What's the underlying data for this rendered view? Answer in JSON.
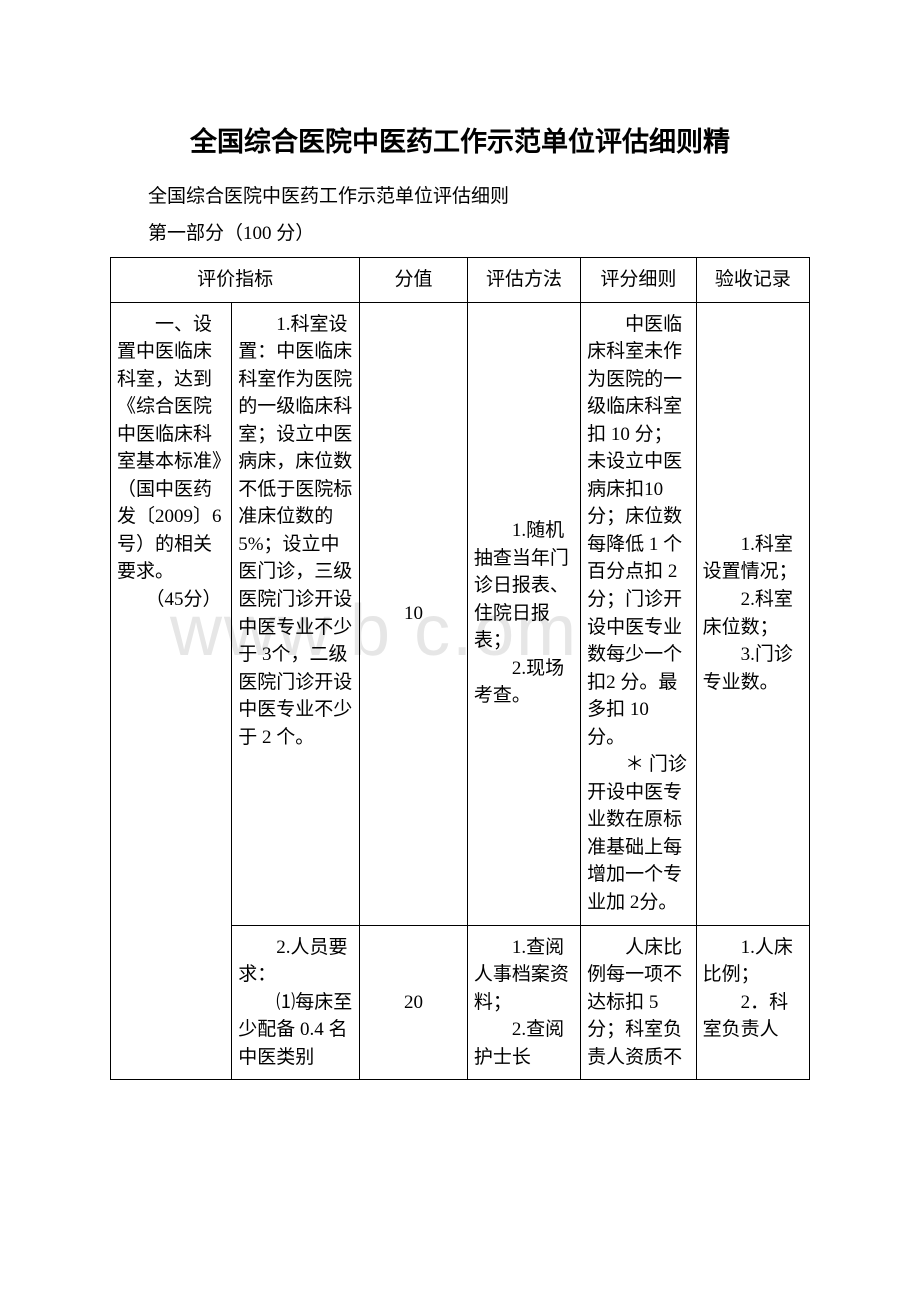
{
  "title": "全国综合医院中医药工作示范单位评估细则精",
  "subtitle": "全国综合医院中医药工作示范单位评估细则",
  "section": "第一部分（100 分）",
  "watermark": "www.b   c.om",
  "headers": {
    "indicator": "评价指标",
    "score": "分值",
    "method": "评估方法",
    "rule": "评分细则",
    "record": "验收记录"
  },
  "rows": [
    {
      "indicator": "　　一、设置中医临床科室，达到《综合医院中医临床科室基本标准》（国中医药发〔2009〕6 号）的相关要求。\n　　（45分）",
      "detail": "　　1.科室设置：中医临床科室作为医院的一级临床科室；设立中医病床，床位数不低于医院标准床位数的 5%；设立中医门诊，三级医院门诊开设中医专业不少于 3个，二级医院门诊开设中医专业不少于 2 个。",
      "score": "10",
      "method": "　　1.随机抽查当年门诊日报表、住院日报表；\n　　2.现场考查。",
      "rule": "　　中医临床科室未作为医院的一级临床科室扣 10 分；未设立中医病床扣10 分；床位数每降低 1 个百分点扣 2分；门诊开设中医专业数每少一个扣2 分。最多扣 10 分。\n　　＊ 门诊开设中医专业数在原标准基础上每增加一个专业加 2分。",
      "record": "　　1.科室设置情况；\n　　2.科室床位数；\n　　3.门诊专业数。"
    },
    {
      "indicator": "",
      "detail": "　　2.人员要求：\n　　⑴每床至少配备 0.4 名中医类别",
      "score": "20",
      "method": "　　1.查阅人事档案资料；\n　　2.查阅护士长",
      "rule": "　　人床比例每一项不达标扣 5 分；科室负责人资质不",
      "record": "　　1.人床比例；\n　　2．科室负责人"
    }
  ]
}
